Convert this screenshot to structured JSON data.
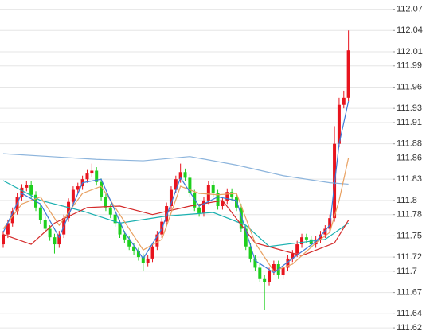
{
  "chart_data": {
    "type": "candlestick",
    "open": [
      111.738,
      111.752,
      111.768,
      111.785,
      111.805,
      111.818,
      111.822,
      111.808,
      111.79,
      111.772,
      111.76,
      111.748,
      111.738,
      111.752,
      111.775,
      111.798,
      111.815,
      111.82,
      111.83,
      111.838,
      111.842,
      111.826,
      111.805,
      111.79,
      111.78,
      111.768,
      111.752,
      111.745,
      111.735,
      111.728,
      111.72,
      111.712,
      111.718,
      111.735,
      111.752,
      111.77,
      111.792,
      111.815,
      111.83,
      111.84,
      111.832,
      111.81,
      111.79,
      111.782,
      111.8,
      111.822,
      111.81,
      111.792,
      111.8,
      111.812,
      111.805,
      111.79,
      111.76,
      111.735,
      111.718,
      111.705,
      111.69,
      111.685,
      111.7,
      111.71,
      111.695,
      111.705,
      111.718,
      111.725,
      111.738,
      111.748,
      111.745,
      111.738,
      111.745,
      111.752,
      111.76,
      111.775,
      111.88,
      111.935,
      111.945
    ],
    "high": [
      111.757,
      111.773,
      111.79,
      111.81,
      111.823,
      111.827,
      111.827,
      111.813,
      111.795,
      111.777,
      111.765,
      111.753,
      111.757,
      111.78,
      111.803,
      111.82,
      111.825,
      111.835,
      111.843,
      111.852,
      111.847,
      111.831,
      111.81,
      111.795,
      111.785,
      111.773,
      111.757,
      111.75,
      111.74,
      111.733,
      111.725,
      111.723,
      111.74,
      111.757,
      111.775,
      111.797,
      111.82,
      111.835,
      111.852,
      111.845,
      111.837,
      111.815,
      111.795,
      111.805,
      111.827,
      111.827,
      111.815,
      111.805,
      111.817,
      111.817,
      111.81,
      111.795,
      111.765,
      111.74,
      111.723,
      111.71,
      111.695,
      111.705,
      111.715,
      111.715,
      111.71,
      111.723,
      111.73,
      111.743,
      111.753,
      111.753,
      111.75,
      111.75,
      111.757,
      111.765,
      111.78,
      111.905,
      111.945,
      111.955,
      112.04
    ],
    "low": [
      111.733,
      111.747,
      111.763,
      111.78,
      111.8,
      111.813,
      111.803,
      111.785,
      111.767,
      111.755,
      111.743,
      111.725,
      111.733,
      111.747,
      111.77,
      111.793,
      111.81,
      111.815,
      111.825,
      111.833,
      111.821,
      111.8,
      111.785,
      111.775,
      111.763,
      111.747,
      111.74,
      111.73,
      111.723,
      111.715,
      111.7,
      111.707,
      111.713,
      111.73,
      111.747,
      111.765,
      111.787,
      111.81,
      111.825,
      111.827,
      111.805,
      111.785,
      111.777,
      111.777,
      111.795,
      111.805,
      111.787,
      111.787,
      111.795,
      111.8,
      111.785,
      111.755,
      111.73,
      111.713,
      111.7,
      111.685,
      111.645,
      111.68,
      111.695,
      111.69,
      111.69,
      111.7,
      111.713,
      111.72,
      111.733,
      111.74,
      111.733,
      111.733,
      111.74,
      111.747,
      111.755,
      111.77,
      111.875,
      111.93,
      111.94
    ],
    "close": [
      111.752,
      111.768,
      111.785,
      111.805,
      111.818,
      111.822,
      111.808,
      111.79,
      111.772,
      111.76,
      111.748,
      111.738,
      111.752,
      111.775,
      111.798,
      111.815,
      111.82,
      111.83,
      111.838,
      111.842,
      111.826,
      111.805,
      111.79,
      111.78,
      111.768,
      111.752,
      111.745,
      111.735,
      111.728,
      111.72,
      111.712,
      111.718,
      111.735,
      111.752,
      111.77,
      111.792,
      111.815,
      111.83,
      111.84,
      111.832,
      111.81,
      111.79,
      111.782,
      111.8,
      111.822,
      111.81,
      111.792,
      111.8,
      111.812,
      111.805,
      111.79,
      111.76,
      111.735,
      111.718,
      111.705,
      111.69,
      111.685,
      111.7,
      111.71,
      111.695,
      111.705,
      111.718,
      111.725,
      111.738,
      111.748,
      111.745,
      111.738,
      111.745,
      111.752,
      111.76,
      111.775,
      111.88,
      111.935,
      111.945,
      112.012
    ],
    "up_color": "#e8141e",
    "down_color": "#1ecf1e",
    "overlays": [
      {
        "color": "#8cb4dc",
        "x": [
          0,
          10,
          20,
          30,
          40,
          50,
          60,
          70,
          74
        ],
        "values": [
          111.866,
          111.862,
          111.858,
          111.856,
          111.862,
          111.85,
          111.835,
          111.825,
          111.823
        ]
      },
      {
        "color": "#1ab0b0",
        "x": [
          0,
          8,
          17,
          25,
          35,
          45,
          52,
          57,
          63,
          69,
          74
        ],
        "values": [
          111.828,
          111.8,
          111.785,
          111.768,
          111.778,
          111.783,
          111.765,
          111.735,
          111.74,
          111.745,
          111.768
        ]
      },
      {
        "color": "#d42a2a",
        "x": [
          0,
          6,
          11,
          18,
          25,
          32,
          40,
          47,
          54,
          64,
          71,
          74
        ],
        "values": [
          111.752,
          111.738,
          111.768,
          111.79,
          111.792,
          111.78,
          111.792,
          111.8,
          111.74,
          111.722,
          111.74,
          111.772
        ]
      },
      {
        "color": "#e8a060",
        "x": [
          0,
          4,
          8,
          12,
          17,
          21,
          26,
          30,
          34,
          38,
          42,
          46,
          50,
          54,
          58,
          62,
          67,
          70,
          72,
          74
        ],
        "values": [
          111.76,
          111.795,
          111.805,
          111.765,
          111.81,
          111.82,
          111.77,
          111.73,
          111.745,
          111.82,
          111.81,
          111.808,
          111.81,
          111.74,
          111.7,
          111.71,
          111.74,
          111.755,
          111.8,
          111.86
        ]
      },
      {
        "color": "#3a7ad8",
        "x": [
          0,
          4,
          8,
          12,
          17,
          21,
          26,
          30,
          34,
          38,
          42,
          46,
          50,
          54,
          58,
          62,
          67,
          70,
          72,
          74
        ],
        "values": [
          111.755,
          111.81,
          111.795,
          111.748,
          111.825,
          111.83,
          111.755,
          111.718,
          111.76,
          111.832,
          111.792,
          111.805,
          111.8,
          111.715,
          111.698,
          111.718,
          111.742,
          111.765,
          111.88,
          111.94
        ]
      }
    ],
    "ylim": [
      111.61,
      112.083
    ],
    "yticks": [
      112.07,
      112.04,
      112.01,
      111.99,
      111.96,
      111.93,
      111.91,
      111.88,
      111.86,
      111.83,
      111.8,
      111.78,
      111.75,
      111.72,
      111.7,
      111.67,
      111.64,
      111.62
    ],
    "grid": true
  }
}
